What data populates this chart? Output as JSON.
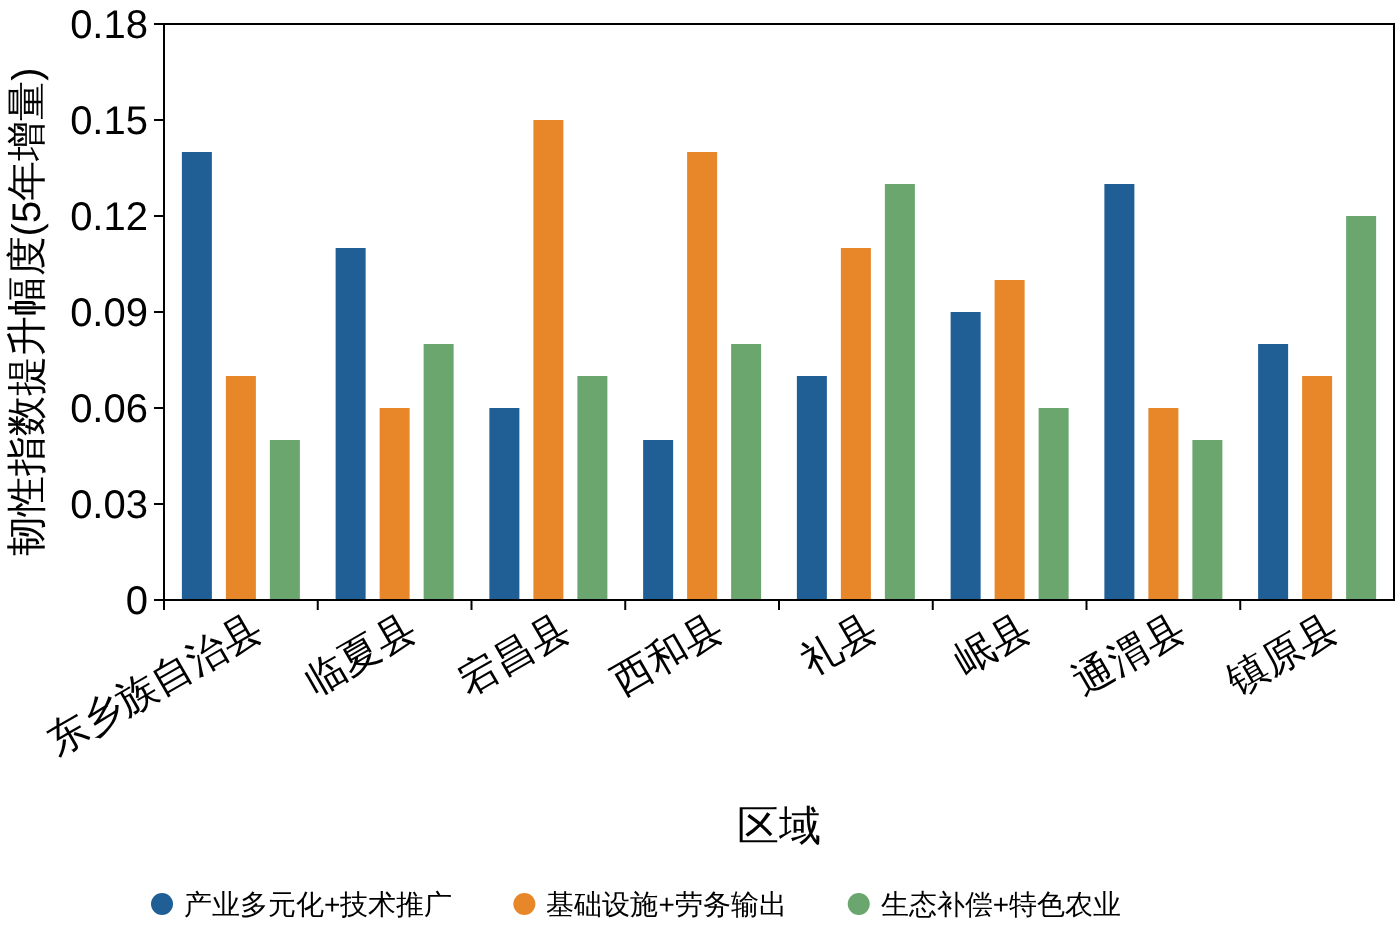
{
  "chart_data": {
    "type": "bar",
    "xlabel": "区域",
    "ylabel": "韧性指数提升幅度(5年增量)",
    "categories": [
      "东乡族自治县",
      "临夏县",
      "宕昌县",
      "西和县",
      "礼县",
      "岷县",
      "通渭县",
      "镇原县"
    ],
    "series": [
      {
        "name": "产业多元化+技术推广",
        "color": "#1f5f96",
        "values": [
          0.14,
          0.11,
          0.06,
          0.05,
          0.07,
          0.09,
          0.13,
          0.08
        ]
      },
      {
        "name": "基础设施+劳务输出",
        "color": "#e8862a",
        "values": [
          0.07,
          0.06,
          0.15,
          0.14,
          0.11,
          0.1,
          0.06,
          0.07
        ]
      },
      {
        "name": "生态补偿+特色农业",
        "color": "#6aa66e",
        "values": [
          0.05,
          0.08,
          0.07,
          0.08,
          0.13,
          0.06,
          0.05,
          0.12
        ]
      }
    ],
    "ylim": [
      0,
      0.18
    ],
    "yticks": [
      0,
      0.03,
      0.06,
      0.09,
      0.12,
      0.15,
      0.18
    ],
    "grid": false,
    "legend": "bottom"
  }
}
